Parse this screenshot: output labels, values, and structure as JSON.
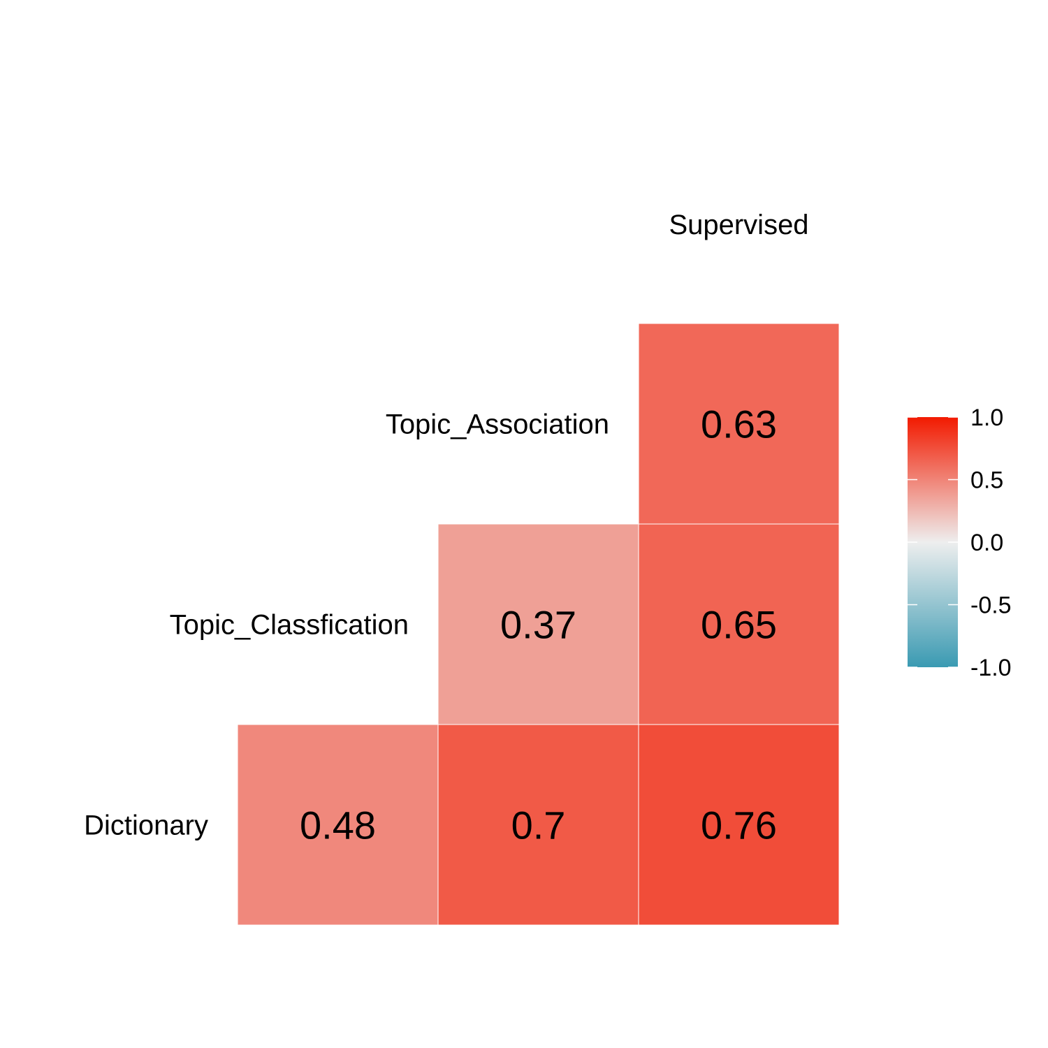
{
  "chart_data": {
    "type": "heatmap",
    "title": "",
    "xlabel": "",
    "ylabel": "",
    "variables": [
      "Dictionary",
      "Topic_Classfication",
      "Topic_Association",
      "Supervised"
    ],
    "cells": [
      {
        "row": "Dictionary",
        "col": "Topic_Classfication",
        "value": 0.48,
        "label": "0.48"
      },
      {
        "row": "Dictionary",
        "col": "Topic_Association",
        "value": 0.7,
        "label": "0.7"
      },
      {
        "row": "Dictionary",
        "col": "Supervised",
        "value": 0.76,
        "label": "0.76"
      },
      {
        "row": "Topic_Classfication",
        "col": "Topic_Association",
        "value": 0.37,
        "label": "0.37"
      },
      {
        "row": "Topic_Classfication",
        "col": "Supervised",
        "value": 0.65,
        "label": "0.65"
      },
      {
        "row": "Topic_Association",
        "col": "Supervised",
        "value": 0.63,
        "label": "0.63"
      }
    ],
    "legend": {
      "placement": "right",
      "range": [
        -1,
        1
      ],
      "ticks": [
        1,
        0.5,
        0,
        -0.5,
        -1
      ],
      "tick_labels": [
        "1.0",
        "0.5",
        "0.0",
        "-0.5",
        "-1.0"
      ],
      "colors": {
        "low": "#3a9ab2",
        "mid": "#eeeeee",
        "high": "#f21a00"
      }
    }
  }
}
